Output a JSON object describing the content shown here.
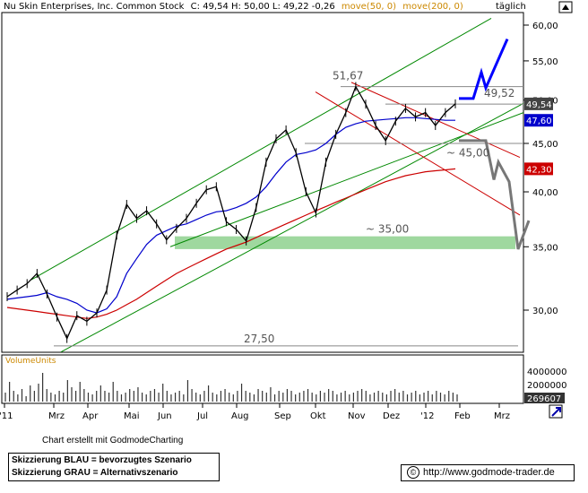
{
  "header": {
    "title": "Nu Skin Enterprises, Inc. Common Stock",
    "ohlc": "C: 49,54 H: 50,00 L: 49,22 -0,26",
    "ma50_label": "move(50, 0)",
    "ma200_label": "move(200, 0)",
    "period": "täglich"
  },
  "colors": {
    "price": "#000000",
    "ma50": "#0000cc",
    "ma200": "#cc0000",
    "channel": "#008800",
    "resistance": "#cc0000",
    "scenario_blue": "#0000ff",
    "scenario_grey": "#777777",
    "support_zone": "#9fd89f",
    "axis_text": "#000000",
    "volume_label": "#cc8800"
  },
  "chart_data": {
    "type": "line",
    "title": "Nu Skin Enterprises, Inc. Common Stock",
    "ylim": [
      27,
      61
    ],
    "x_ticks": [
      "'11",
      "Mrz",
      "Apr",
      "Mai",
      "Jun",
      "Jul",
      "Aug",
      "Sep",
      "Okt",
      "Nov",
      "Dez",
      "'12",
      "Feb",
      "Mrz"
    ],
    "y_ticks": [
      "60,00",
      "55,00",
      "50,00",
      "45,00",
      "40,00",
      "35,00",
      "30,00"
    ],
    "price_series": [
      {
        "t": "Jan",
        "v": 31.0
      },
      {
        "t": "Jan",
        "v": 31.5
      },
      {
        "t": "Feb",
        "v": 32.0
      },
      {
        "t": "Feb",
        "v": 32.8
      },
      {
        "t": "Feb",
        "v": 31.2
      },
      {
        "t": "Mrz",
        "v": 29.5
      },
      {
        "t": "Mrz",
        "v": 28.0
      },
      {
        "t": "Mrz",
        "v": 29.6
      },
      {
        "t": "Apr",
        "v": 29.2
      },
      {
        "t": "Apr",
        "v": 29.8
      },
      {
        "t": "Apr",
        "v": 31.5
      },
      {
        "t": "Mai",
        "v": 36.0
      },
      {
        "t": "Mai",
        "v": 38.8
      },
      {
        "t": "Mai",
        "v": 37.5
      },
      {
        "t": "Mai",
        "v": 38.2
      },
      {
        "t": "Jun",
        "v": 37.0
      },
      {
        "t": "Jun",
        "v": 35.6
      },
      {
        "t": "Jun",
        "v": 36.6
      },
      {
        "t": "Jul",
        "v": 37.5
      },
      {
        "t": "Jul",
        "v": 38.9
      },
      {
        "t": "Jul",
        "v": 40.2
      },
      {
        "t": "Aug",
        "v": 40.5
      },
      {
        "t": "Aug",
        "v": 37.2
      },
      {
        "t": "Aug",
        "v": 36.5
      },
      {
        "t": "Aug",
        "v": 35.5
      },
      {
        "t": "Sep",
        "v": 38.5
      },
      {
        "t": "Sep",
        "v": 43.0
      },
      {
        "t": "Sep",
        "v": 45.5
      },
      {
        "t": "Sep",
        "v": 46.5
      },
      {
        "t": "Okt",
        "v": 44.0
      },
      {
        "t": "Okt",
        "v": 40.0
      },
      {
        "t": "Okt",
        "v": 38.0
      },
      {
        "t": "Okt",
        "v": 43.0
      },
      {
        "t": "Okt",
        "v": 46.0
      },
      {
        "t": "Nov",
        "v": 48.5
      },
      {
        "t": "Nov",
        "v": 51.67
      },
      {
        "t": "Nov",
        "v": 49.5
      },
      {
        "t": "Nov",
        "v": 47.0
      },
      {
        "t": "Dez",
        "v": 45.3
      },
      {
        "t": "Dez",
        "v": 47.5
      },
      {
        "t": "Dez",
        "v": 49.0
      },
      {
        "t": "Dez",
        "v": 48.0
      },
      {
        "t": "Jan",
        "v": 48.5
      },
      {
        "t": "Jan",
        "v": 47.0
      },
      {
        "t": "Jan",
        "v": 48.5
      },
      {
        "t": "Jan",
        "v": 49.54
      }
    ],
    "ma50": [
      30.8,
      30.9,
      31.0,
      31.1,
      31.3,
      31.0,
      30.8,
      30.5,
      30.0,
      29.8,
      30.1,
      31.0,
      32.8,
      34.0,
      35.2,
      36.0,
      36.4,
      36.8,
      37.0,
      37.4,
      37.8,
      38.1,
      38.2,
      38.5,
      38.9,
      39.5,
      40.5,
      41.8,
      43.0,
      43.8,
      44.0,
      44.3,
      45.0,
      46.0,
      46.8,
      47.2,
      47.5,
      47.6,
      47.7,
      47.8,
      47.9,
      47.9,
      47.8,
      47.7,
      47.6,
      47.6
    ],
    "ma200": [
      30.2,
      30.1,
      30.0,
      29.9,
      29.8,
      29.7,
      29.6,
      29.5,
      29.4,
      29.5,
      29.7,
      30.0,
      30.4,
      30.8,
      31.3,
      31.8,
      32.3,
      32.8,
      33.2,
      33.6,
      34.0,
      34.4,
      34.8,
      35.1,
      35.4,
      35.8,
      36.2,
      36.6,
      37.0,
      37.4,
      37.8,
      38.2,
      38.6,
      39.0,
      39.4,
      39.8,
      40.2,
      40.6,
      41.0,
      41.3,
      41.6,
      41.8,
      42.0,
      42.1,
      42.2,
      42.3
    ],
    "price_tags": {
      "last": "49,54",
      "ma50": "47,60",
      "ma200": "42,30"
    },
    "annotations": {
      "high": "51,67",
      "resistance": "49,52",
      "support1": "~ 45,00",
      "support2": "~ 35,00",
      "low": "27,50"
    },
    "volume": {
      "label": "VolumeUnits",
      "ticks": [
        "4000000",
        "2000000"
      ],
      "last": "269607",
      "bars": [
        0.25,
        0.55,
        0.3,
        0.2,
        0.35,
        0.15,
        0.45,
        0.3,
        0.5,
        0.8,
        0.35,
        0.25,
        0.2,
        0.3,
        0.25,
        0.6,
        0.4,
        0.3,
        0.55,
        0.35,
        0.25,
        0.2,
        0.3,
        0.45,
        0.3,
        0.25,
        0.55,
        0.3,
        0.2,
        0.25,
        0.35,
        0.3,
        0.4,
        0.25,
        0.2,
        0.3,
        0.35,
        0.25,
        0.5,
        0.3,
        0.2,
        0.25,
        0.3,
        0.2,
        0.6,
        0.35,
        0.25,
        0.2,
        0.3,
        0.45,
        0.25,
        0.2,
        0.3,
        0.35,
        0.25,
        0.2,
        0.3,
        0.5,
        0.3,
        0.25,
        0.2,
        0.35,
        0.3,
        0.25,
        0.4,
        0.2,
        0.3,
        0.25,
        0.35,
        0.3,
        0.2,
        0.25,
        0.3,
        0.35,
        0.25,
        0.2,
        0.3,
        0.25,
        0.35,
        0.3,
        0.2,
        0.25,
        0.3,
        0.2,
        0.25,
        0.3,
        0.35,
        0.3,
        0.2,
        0.25,
        0.3,
        0.25,
        0.2,
        0.3,
        0.35,
        0.25,
        0.3,
        0.2,
        0.25,
        0.3,
        0.2,
        0.25,
        0.3,
        0.2,
        0.3,
        0.25,
        0.2,
        0.3,
        0.25,
        0.2
      ]
    }
  },
  "footer": {
    "credit": "Chart erstellt mit GodmodeCharting",
    "legend_blue": "Skizzierung BLAU = bevorzugtes Szenario",
    "legend_grey": "Skizzierung GRAU = Alternativszenario",
    "copyright": "©",
    "url": "http://www.godmode-trader.de"
  }
}
